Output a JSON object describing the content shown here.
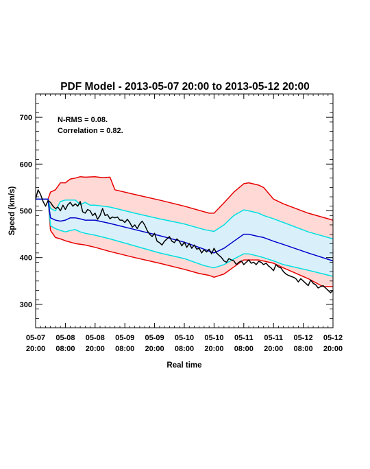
{
  "chart_data": {
    "type": "line",
    "title": "PDF Model - 2013-05-07 20:00 to 2013-05-12 20:00",
    "xlabel": "Real time",
    "ylabel": "Speed (km/s)",
    "xlim": [
      0,
      120
    ],
    "ylim": [
      250,
      750
    ],
    "x_ticks": [
      {
        "hour": 0,
        "date": "05-07",
        "time": "20:00"
      },
      {
        "hour": 12,
        "date": "05-08",
        "time": "08:00"
      },
      {
        "hour": 24,
        "date": "05-08",
        "time": "20:00"
      },
      {
        "hour": 36,
        "date": "05-09",
        "time": "08:00"
      },
      {
        "hour": 48,
        "date": "05-09",
        "time": "20:00"
      },
      {
        "hour": 60,
        "date": "05-10",
        "time": "08:00"
      },
      {
        "hour": 72,
        "date": "05-10",
        "time": "20:00"
      },
      {
        "hour": 84,
        "date": "05-11",
        "time": "08:00"
      },
      {
        "hour": 96,
        "date": "05-11",
        "time": "20:00"
      },
      {
        "hour": 108,
        "date": "05-12",
        "time": "08:00"
      },
      {
        "hour": 120,
        "date": "05-12",
        "time": "20:00"
      }
    ],
    "y_ticks": [
      300,
      400,
      500,
      600,
      700
    ],
    "annotations": [
      "N-RMS = 0.08.",
      "Correlation = 0.82."
    ],
    "colors": {
      "outer_band": "#ffd9d6",
      "inner_band": "#d9f0fb",
      "outer_line": "#e60000",
      "inner_line": "#00e0e0",
      "median_line": "#0000cc",
      "observed_line": "#000000"
    },
    "series": [
      {
        "role": "outer-upper",
        "x": [
          0,
          5,
          6,
          8,
          10,
          12,
          14,
          16,
          18,
          20,
          24,
          27,
          30,
          32,
          40,
          50,
          60,
          70,
          72,
          76,
          80,
          84,
          86,
          90,
          92,
          96,
          100,
          110,
          120
        ],
        "y": [
          525,
          525,
          540,
          545,
          560,
          560,
          568,
          570,
          573,
          572,
          573,
          571,
          572,
          545,
          535,
          523,
          510,
          495,
          495,
          517,
          540,
          558,
          560,
          555,
          550,
          525,
          515,
          495,
          480
        ]
      },
      {
        "role": "inner-upper",
        "x": [
          0,
          5,
          6,
          8,
          10,
          12,
          14,
          16,
          18,
          20,
          22,
          24,
          30,
          40,
          50,
          60,
          68,
          72,
          76,
          80,
          84,
          86,
          90,
          92,
          96,
          100,
          110,
          120
        ],
        "y": [
          525,
          525,
          505,
          500,
          520,
          523,
          523,
          523,
          513,
          518,
          512,
          512,
          508,
          495,
          483,
          472,
          460,
          456,
          470,
          490,
          502,
          500,
          495,
          490,
          483,
          475,
          455,
          440
        ]
      },
      {
        "role": "median",
        "x": [
          0,
          5,
          6,
          8,
          10,
          12,
          14,
          16,
          18,
          20,
          22,
          24,
          30,
          40,
          50,
          60,
          68,
          72,
          76,
          80,
          84,
          86,
          90,
          92,
          96,
          100,
          110,
          120
        ],
        "y": [
          525,
          525,
          485,
          480,
          478,
          480,
          485,
          485,
          483,
          480,
          480,
          480,
          473,
          460,
          447,
          433,
          418,
          410,
          420,
          435,
          450,
          450,
          445,
          443,
          435,
          428,
          410,
          393
        ]
      },
      {
        "role": "inner-lower",
        "x": [
          0,
          5,
          6,
          8,
          10,
          12,
          14,
          16,
          18,
          20,
          22,
          24,
          30,
          40,
          50,
          60,
          68,
          72,
          76,
          80,
          84,
          86,
          90,
          92,
          96,
          100,
          110,
          120
        ],
        "y": [
          525,
          525,
          468,
          462,
          458,
          455,
          458,
          460,
          455,
          452,
          450,
          448,
          440,
          425,
          410,
          398,
          383,
          378,
          385,
          397,
          408,
          408,
          403,
          400,
          393,
          385,
          373,
          360
        ]
      },
      {
        "role": "outer-lower",
        "x": [
          0,
          5,
          6,
          8,
          10,
          12,
          16,
          20,
          24,
          30,
          40,
          50,
          60,
          66,
          70,
          72,
          76,
          80,
          84,
          90,
          96,
          100,
          110,
          116,
          120
        ],
        "y": [
          525,
          525,
          458,
          443,
          440,
          436,
          430,
          427,
          422,
          413,
          400,
          388,
          375,
          366,
          362,
          358,
          365,
          380,
          395,
          395,
          388,
          378,
          355,
          338,
          338
        ]
      },
      {
        "role": "observed",
        "x": [
          0,
          1,
          2,
          3,
          4,
          5,
          6,
          7,
          8,
          9,
          10,
          11,
          12,
          13,
          14,
          15,
          16,
          17,
          18,
          19,
          20,
          21,
          22,
          23,
          24,
          25,
          26,
          27,
          28,
          29,
          30,
          31,
          32,
          33,
          34,
          35,
          36,
          37,
          38,
          39,
          40,
          41,
          42,
          43,
          44,
          45,
          46,
          47,
          48,
          49,
          50,
          51,
          52,
          53,
          54,
          55,
          56,
          57,
          58,
          59,
          60,
          61,
          62,
          63,
          64,
          65,
          66,
          67,
          68,
          69,
          70,
          71,
          72,
          73,
          74,
          75,
          76,
          77,
          78,
          79,
          80,
          81,
          82,
          83,
          84,
          85,
          86,
          87,
          88,
          89,
          90,
          91,
          92,
          93,
          94,
          95,
          96,
          97,
          98,
          99,
          100,
          101,
          102,
          103,
          104,
          105,
          106,
          107,
          108,
          109,
          110,
          111,
          112,
          113,
          114,
          115,
          116,
          117,
          118,
          119,
          120
        ],
        "y": [
          525,
          545,
          535,
          520,
          510,
          522,
          518,
          510,
          505,
          508,
          500,
          512,
          503,
          513,
          518,
          510,
          515,
          510,
          520,
          498,
          495,
          503,
          500,
          490,
          495,
          482,
          490,
          505,
          490,
          492,
          483,
          487,
          485,
          487,
          480,
          480,
          475,
          482,
          475,
          465,
          470,
          462,
          472,
          478,
          470,
          458,
          450,
          445,
          452,
          435,
          432,
          427,
          435,
          440,
          445,
          435,
          432,
          440,
          435,
          425,
          433,
          422,
          430,
          420,
          427,
          418,
          420,
          410,
          417,
          412,
          418,
          408,
          420,
          410,
          405,
          400,
          393,
          390,
          398,
          395,
          393,
          385,
          390,
          393,
          385,
          390,
          395,
          388,
          390,
          385,
          392,
          390,
          385,
          388,
          382,
          378,
          372,
          385,
          380,
          378,
          370,
          365,
          362,
          360,
          358,
          355,
          348,
          355,
          350,
          345,
          340,
          352,
          345,
          342,
          335,
          338,
          340,
          335,
          330,
          325,
          330
        ]
      }
    ]
  }
}
